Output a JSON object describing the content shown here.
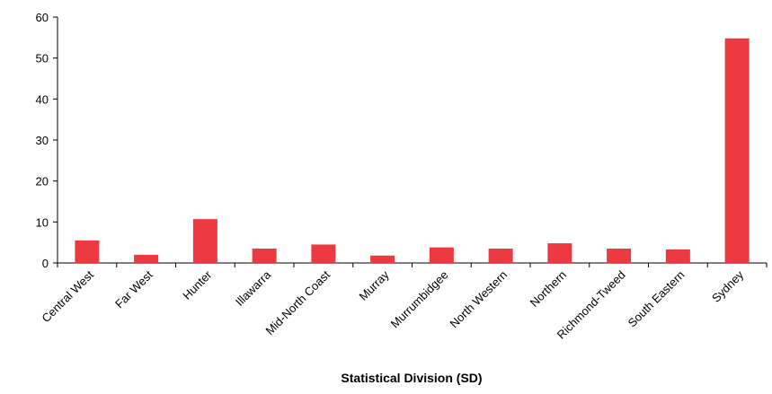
{
  "chart_data": {
    "type": "bar",
    "x_label": "Statistical Division (SD)",
    "categories": [
      "Central West",
      "Far West",
      "Hunter",
      "Illawarra",
      "Mid-North Coast",
      "Murray",
      "Murrumbidgee",
      "North Western",
      "Northern",
      "Richmond-Tweed",
      "South Eastern",
      "Sydney"
    ],
    "values": [
      5.5,
      2.0,
      10.7,
      3.5,
      4.5,
      1.8,
      3.8,
      3.5,
      4.8,
      3.5,
      3.3,
      54.8
    ],
    "color": "#ed3a42",
    "ylim": [
      0,
      60
    ],
    "yticks": [
      0,
      10,
      20,
      30,
      40,
      50,
      60
    ],
    "grid": false
  }
}
